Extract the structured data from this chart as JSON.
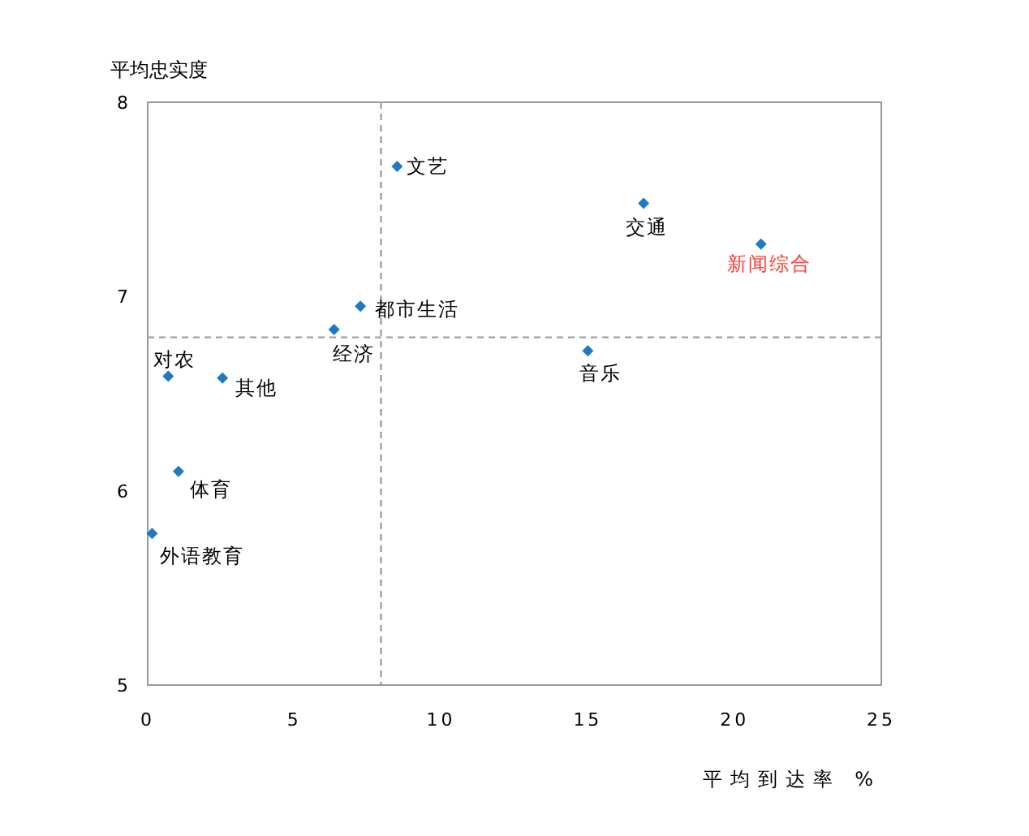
{
  "chart_data": {
    "type": "scatter",
    "xlabel": "平均到达率 %",
    "ylabel": "平均忠实度",
    "marker": "diamond",
    "grid": false,
    "xlim": [
      0,
      25
    ],
    "ylim": [
      5,
      8
    ],
    "xticks": [
      0,
      5,
      10,
      15,
      20,
      25
    ],
    "yticks": [
      5,
      6,
      7,
      8
    ],
    "series": [
      {
        "color": "#1f7ac4",
        "x": [
          8.5,
          16.9,
          20.9,
          7.25,
          6.35,
          15.0,
          0.7,
          2.55,
          1.05,
          0.15
        ],
        "values": [
          7.67,
          7.48,
          7.27,
          6.95,
          6.83,
          6.72,
          6.59,
          6.58,
          6.1,
          5.78
        ]
      }
    ],
    "ref_lines": [
      {
        "axis": "x",
        "value": 7.95,
        "color": "#a0a0a0",
        "line_style": "dashed"
      },
      {
        "axis": "y",
        "value": 6.79,
        "color": "#a0a0a0",
        "line_style": "dashed"
      }
    ],
    "annotations": [
      {
        "text": "文艺",
        "x": 8.5,
        "y": 7.67
      },
      {
        "text": "交通",
        "x": 16.9,
        "y": 7.48
      },
      {
        "text": "新闻综合",
        "x": 20.9,
        "y": 7.27
      },
      {
        "text": "都市生活",
        "x": 7.25,
        "y": 6.95
      },
      {
        "text": "经济",
        "x": 6.35,
        "y": 6.83
      },
      {
        "text": "音乐",
        "x": 15.0,
        "y": 6.72
      },
      {
        "text": "对农",
        "x": 0.7,
        "y": 6.59
      },
      {
        "text": "其他",
        "x": 2.55,
        "y": 6.58
      },
      {
        "text": "体育",
        "x": 1.05,
        "y": 6.1
      },
      {
        "text": "外语教育",
        "x": 0.15,
        "y": 5.78
      }
    ]
  }
}
